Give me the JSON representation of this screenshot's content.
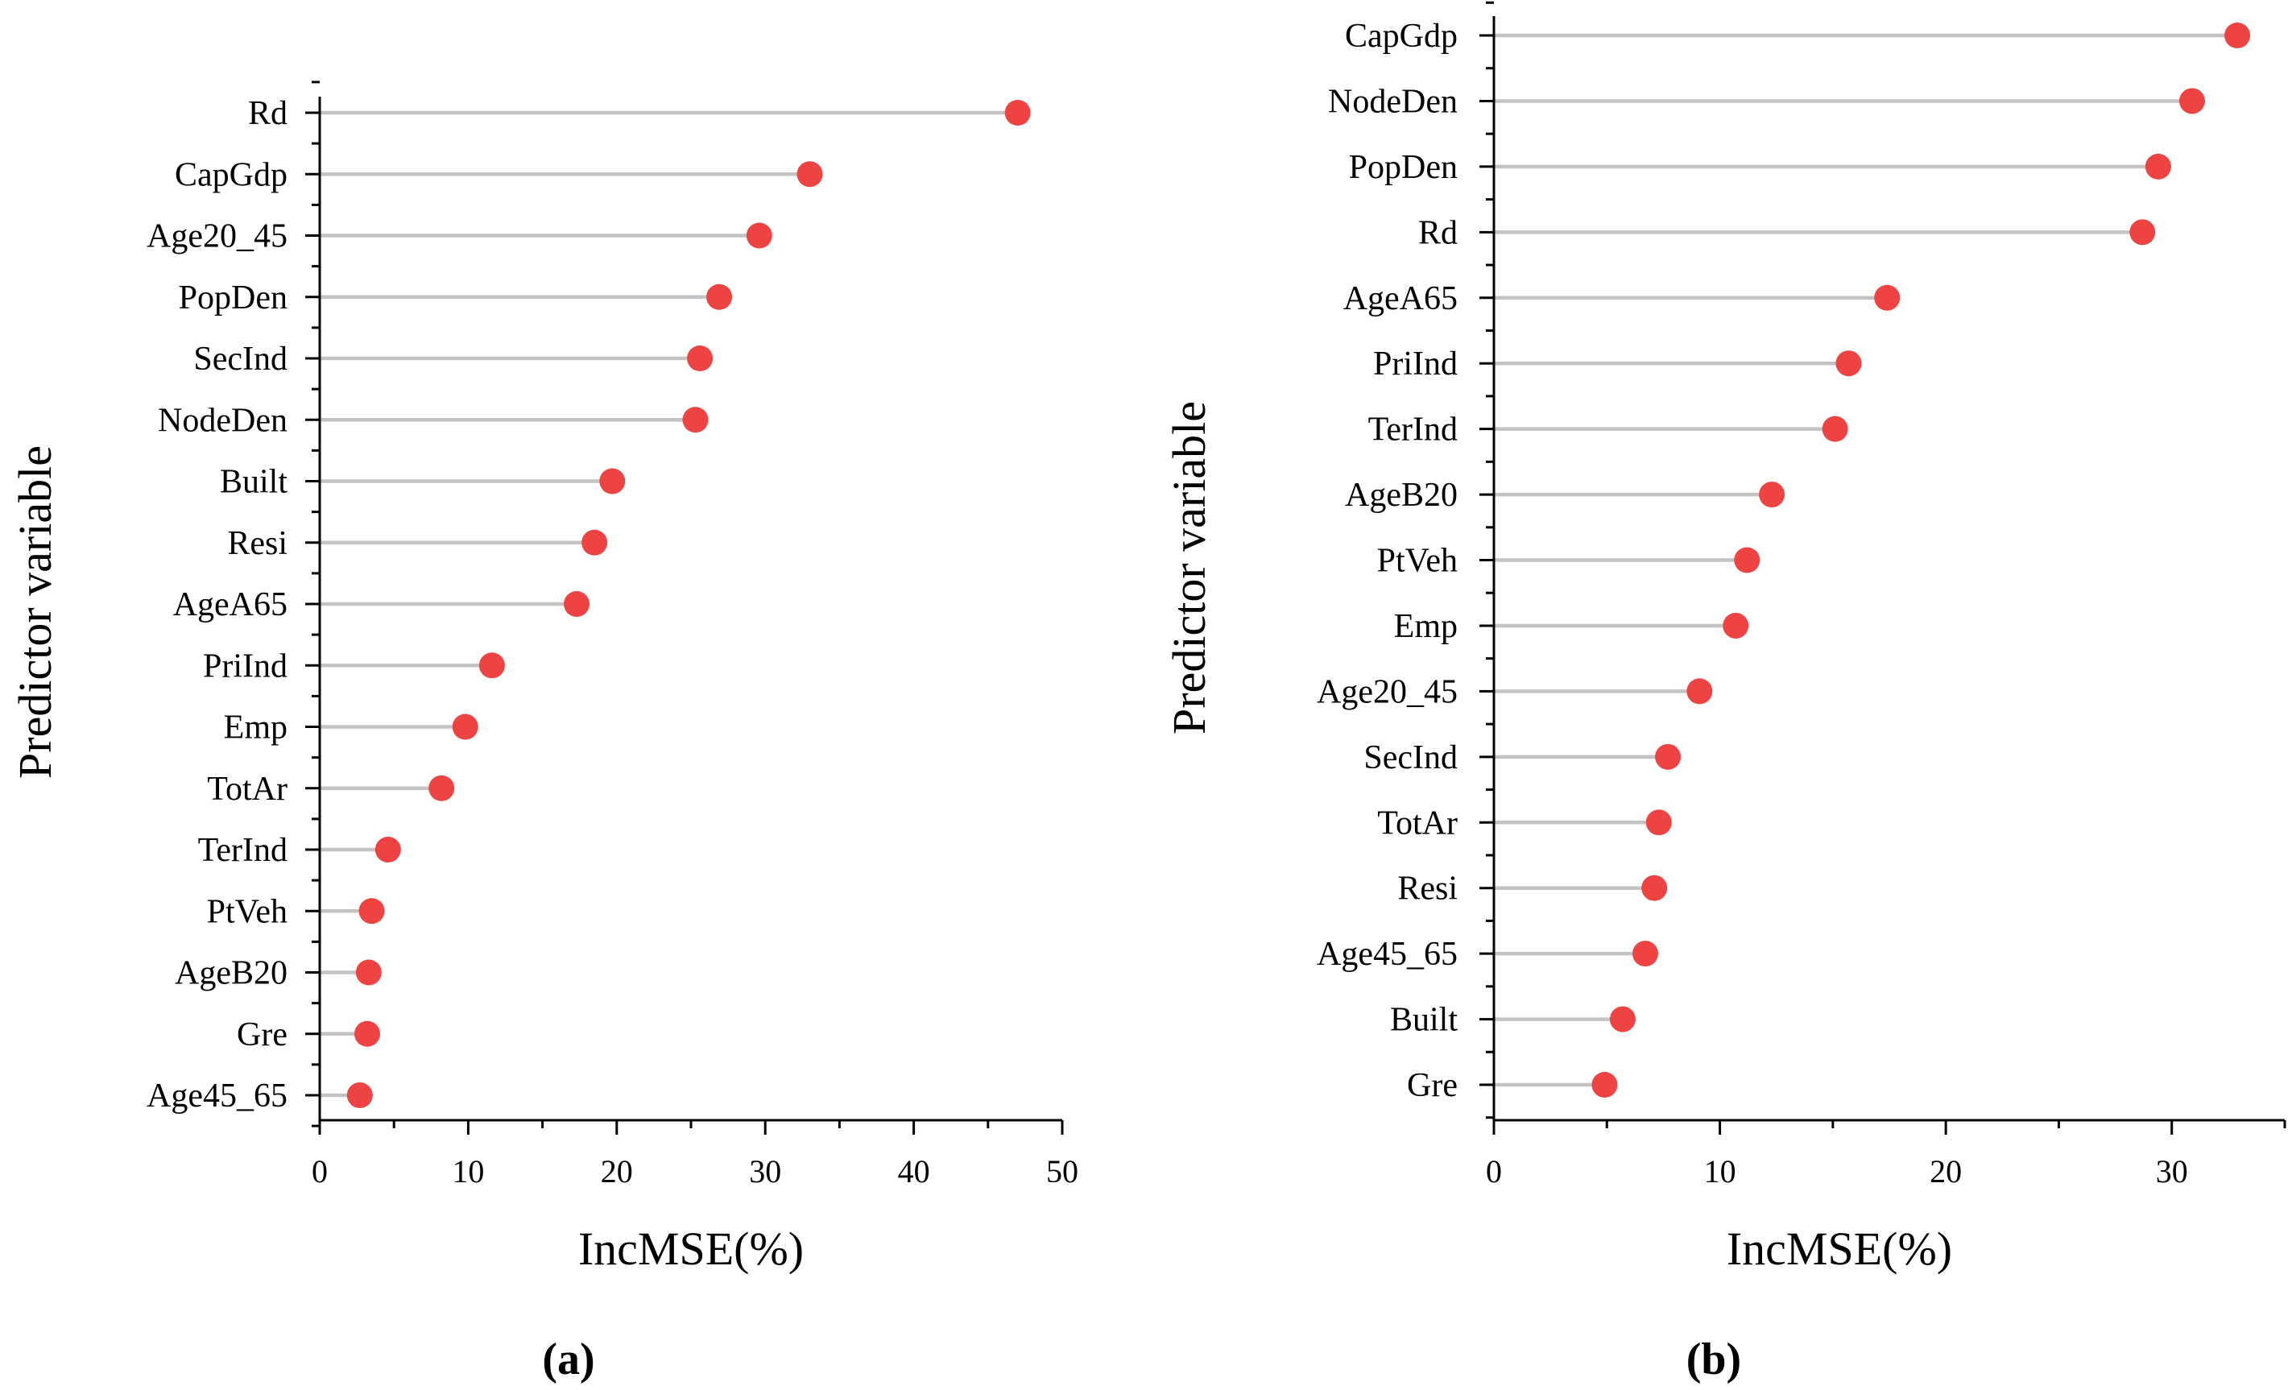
{
  "chart_data": [
    {
      "type": "lollipop",
      "panel_label": "(a)",
      "xlabel": "IncMSE(%)",
      "ylabel": "Predictor variable",
      "xlim": [
        0,
        50
      ],
      "xticks": [
        "0",
        "10",
        "20",
        "30",
        "40",
        "50"
      ],
      "marker_color": "#ee4343",
      "stem_color": "#c3c3c3",
      "categories": [
        "Rd",
        "CapGdp",
        "Age20_45",
        "PopDen",
        "SecInd",
        "NodeDen",
        "Built",
        "Resi",
        "AgeA65",
        "PriInd",
        "Emp",
        "TotAr",
        "TerInd",
        "PtVeh",
        "AgeB20",
        "Gre",
        "Age45_65"
      ],
      "values": [
        47.0,
        33.0,
        29.6,
        26.9,
        25.6,
        25.3,
        19.7,
        18.5,
        17.3,
        11.6,
        9.8,
        8.2,
        4.6,
        3.5,
        3.3,
        3.2,
        2.7
      ]
    },
    {
      "type": "lollipop",
      "panel_label": "(b)",
      "xlabel": "IncMSE(%)",
      "ylabel": "Predictor variable",
      "xlim": [
        0,
        35
      ],
      "xticks": [
        "0",
        "10",
        "20",
        "30"
      ],
      "marker_color": "#ee4343",
      "stem_color": "#c3c3c3",
      "categories": [
        "CapGdp",
        "NodeDen",
        "PopDen",
        "Rd",
        "AgeA65",
        "PriInd",
        "TerInd",
        "AgeB20",
        "PtVeh",
        "Emp",
        "Age20_45",
        "SecInd",
        "TotAr",
        "Resi",
        "Age45_65",
        "Built",
        "Gre"
      ],
      "values": [
        32.9,
        30.9,
        29.4,
        28.7,
        17.4,
        15.7,
        15.1,
        12.3,
        11.2,
        10.7,
        9.1,
        7.7,
        7.3,
        7.1,
        6.7,
        5.7,
        4.9
      ]
    }
  ]
}
